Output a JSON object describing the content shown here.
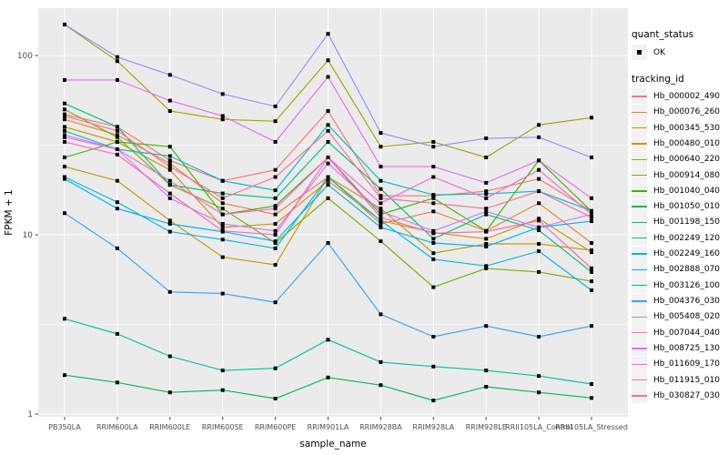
{
  "window": {
    "background": "#FFFFFF"
  },
  "chart_data": {
    "type": "line",
    "title": "",
    "xlabel": "sample_name",
    "ylabel": "FPKM + 1",
    "y_scale": "log10",
    "y_ticks": [
      1,
      10,
      100
    ],
    "y_minor_ticks": [
      3.162,
      31.62
    ],
    "ylim": [
      1,
      185
    ],
    "grid": true,
    "panel_bg": "#EBEBEB",
    "grid_color": "#FFFFFF",
    "tick_color": "#333333",
    "tick_label_color": "#4D4D4D",
    "axis_title_color": "#000000",
    "point_color": "#000000",
    "point_shape": "square",
    "categories": [
      "PB350LA",
      "RRIM600LA",
      "RRIM600LE",
      "RRIM600SE",
      "RRIM600PE",
      "RRIM901LA",
      "RRIM928BA",
      "RRIM928LA",
      "RRIM928LE",
      "RRII105LA_Control",
      "RRII105LA_Stressed"
    ],
    "series": [
      {
        "name": "Hb_000002_490",
        "color": "#F8766D",
        "values": [
          47,
          40,
          26,
          20,
          23,
          49,
          16.5,
          16.5,
          17.5,
          20.5,
          13.5
        ]
      },
      {
        "name": "Hb_000076_260",
        "color": "#EA8331",
        "values": [
          44,
          36,
          25,
          15,
          13,
          21,
          11.5,
          13.5,
          10.5,
          15,
          9
        ]
      },
      {
        "name": "Hb_000345_530",
        "color": "#D89000",
        "values": [
          40,
          33,
          23,
          11,
          11.5,
          20,
          12,
          10.3,
          9.5,
          12.3,
          8
        ]
      },
      {
        "name": "Hb_000480_010",
        "color": "#C09B00",
        "values": [
          24,
          20,
          12,
          7.5,
          6.8,
          21,
          14,
          7.9,
          8.9,
          8.9,
          8.2
        ]
      },
      {
        "name": "Hb_000640_220",
        "color": "#A3A500",
        "values": [
          149,
          93,
          49,
          44,
          43,
          94,
          31,
          33,
          27,
          41,
          45
        ]
      },
      {
        "name": "Hb_000914_080",
        "color": "#7CAE00",
        "values": [
          50,
          35,
          19,
          14,
          9,
          16,
          9.2,
          5.1,
          6.5,
          6.2,
          5.5
        ]
      },
      {
        "name": "Hb_001040_040",
        "color": "#39B600",
        "values": [
          27,
          33,
          31,
          13,
          14.5,
          27,
          13,
          16,
          10.5,
          26,
          13.5
        ]
      },
      {
        "name": "Hb_001050_010",
        "color": "#00BB4E",
        "values": [
          1.65,
          1.5,
          1.32,
          1.36,
          1.22,
          1.6,
          1.45,
          1.19,
          1.42,
          1.32,
          1.23
        ]
      },
      {
        "name": "Hb_001198_150",
        "color": "#00BF7D",
        "values": [
          54,
          40,
          19,
          17,
          16,
          33,
          18,
          9.5,
          13,
          10.6,
          6.2
        ]
      },
      {
        "name": "Hb_002249_120",
        "color": "#00C1A3",
        "values": [
          3.4,
          2.8,
          2.1,
          1.75,
          1.8,
          2.6,
          1.95,
          1.84,
          1.75,
          1.63,
          1.47
        ]
      },
      {
        "name": "Hb_002249_160",
        "color": "#00BFC4",
        "values": [
          38,
          30,
          27.5,
          20,
          17.7,
          41,
          20,
          16.7,
          16.9,
          17.5,
          13.6
        ]
      },
      {
        "name": "Hb_002888_070",
        "color": "#00BAE0",
        "values": [
          21,
          15.2,
          10.4,
          9.4,
          8.4,
          21,
          12,
          7.3,
          6.7,
          8.1,
          4.9
        ]
      },
      {
        "name": "Hb_003126_100",
        "color": "#00B0F6",
        "values": [
          20.5,
          14,
          11.5,
          10.4,
          9.2,
          19,
          11,
          9,
          8.6,
          11,
          11.9
        ]
      },
      {
        "name": "Hb_004376_030",
        "color": "#35A2FF",
        "values": [
          13.2,
          8.4,
          4.8,
          4.7,
          4.2,
          9,
          3.6,
          2.7,
          3.1,
          2.7,
          3.1
        ]
      },
      {
        "name": "Hb_005408_020",
        "color": "#9590FF",
        "values": [
          149,
          98,
          78,
          61,
          52,
          132,
          37,
          31,
          34.5,
          35,
          27
        ]
      },
      {
        "name": "Hb_007044_040",
        "color": "#C77CFF",
        "values": [
          35,
          30,
          16,
          11.5,
          10.5,
          25,
          13.5,
          10.5,
          13.5,
          11,
          13
        ]
      },
      {
        "name": "Hb_008725_130",
        "color": "#E76BF3",
        "values": [
          73,
          73,
          56,
          46,
          33,
          76,
          24,
          24,
          19.5,
          26,
          16
        ]
      },
      {
        "name": "Hb_011609_170",
        "color": "#FA62DB",
        "values": [
          36,
          30,
          20,
          13,
          14,
          27,
          15,
          21,
          16,
          23,
          13
        ]
      },
      {
        "name": "Hb_011915_010",
        "color": "#FF62BC",
        "values": [
          33,
          28,
          17,
          10.5,
          10,
          27,
          12.5,
          10.2,
          10.4,
          12,
          6.5
        ]
      },
      {
        "name": "Hb_030827_030",
        "color": "#FF6A98",
        "values": [
          46,
          38,
          24,
          16,
          21,
          38,
          16,
          15,
          14,
          17.5,
          12.5
        ]
      }
    ],
    "legend": {
      "position": "right",
      "key_bg": "#F2F2F2",
      "quant_title": "quant_status",
      "quant_items": [
        {
          "label": "OK",
          "shape": "square",
          "color": "#000000"
        }
      ],
      "series_title": "tracking_id"
    }
  }
}
